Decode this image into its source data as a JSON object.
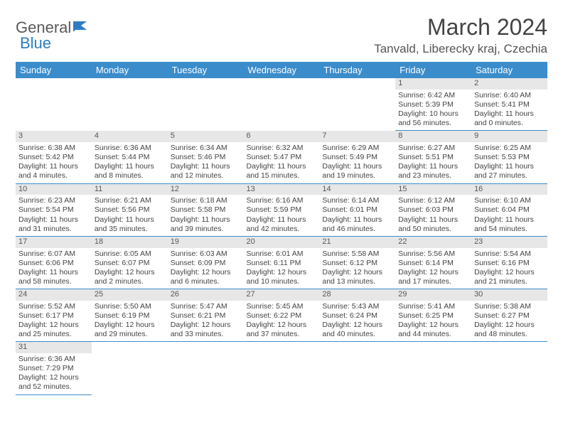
{
  "logo": {
    "text1": "General",
    "text2": "Blue"
  },
  "title": "March 2024",
  "location": "Tanvald, Liberecky kraj, Czechia",
  "colors": {
    "header_bg": "#3b8ccb",
    "header_text": "#ffffff",
    "daynum_bg": "#e7e7e7",
    "cell_border": "#3b8ccb",
    "text": "#444444",
    "logo_gray": "#5a5a5a",
    "logo_blue": "#2d7dc4"
  },
  "weekdays": [
    "Sunday",
    "Monday",
    "Tuesday",
    "Wednesday",
    "Thursday",
    "Friday",
    "Saturday"
  ],
  "weeks": [
    [
      null,
      null,
      null,
      null,
      null,
      {
        "n": "1",
        "sr": "Sunrise: 6:42 AM",
        "ss": "Sunset: 5:39 PM",
        "dl": "Daylight: 10 hours and 56 minutes."
      },
      {
        "n": "2",
        "sr": "Sunrise: 6:40 AM",
        "ss": "Sunset: 5:41 PM",
        "dl": "Daylight: 11 hours and 0 minutes."
      }
    ],
    [
      {
        "n": "3",
        "sr": "Sunrise: 6:38 AM",
        "ss": "Sunset: 5:42 PM",
        "dl": "Daylight: 11 hours and 4 minutes."
      },
      {
        "n": "4",
        "sr": "Sunrise: 6:36 AM",
        "ss": "Sunset: 5:44 PM",
        "dl": "Daylight: 11 hours and 8 minutes."
      },
      {
        "n": "5",
        "sr": "Sunrise: 6:34 AM",
        "ss": "Sunset: 5:46 PM",
        "dl": "Daylight: 11 hours and 12 minutes."
      },
      {
        "n": "6",
        "sr": "Sunrise: 6:32 AM",
        "ss": "Sunset: 5:47 PM",
        "dl": "Daylight: 11 hours and 15 minutes."
      },
      {
        "n": "7",
        "sr": "Sunrise: 6:29 AM",
        "ss": "Sunset: 5:49 PM",
        "dl": "Daylight: 11 hours and 19 minutes."
      },
      {
        "n": "8",
        "sr": "Sunrise: 6:27 AM",
        "ss": "Sunset: 5:51 PM",
        "dl": "Daylight: 11 hours and 23 minutes."
      },
      {
        "n": "9",
        "sr": "Sunrise: 6:25 AM",
        "ss": "Sunset: 5:53 PM",
        "dl": "Daylight: 11 hours and 27 minutes."
      }
    ],
    [
      {
        "n": "10",
        "sr": "Sunrise: 6:23 AM",
        "ss": "Sunset: 5:54 PM",
        "dl": "Daylight: 11 hours and 31 minutes."
      },
      {
        "n": "11",
        "sr": "Sunrise: 6:21 AM",
        "ss": "Sunset: 5:56 PM",
        "dl": "Daylight: 11 hours and 35 minutes."
      },
      {
        "n": "12",
        "sr": "Sunrise: 6:18 AM",
        "ss": "Sunset: 5:58 PM",
        "dl": "Daylight: 11 hours and 39 minutes."
      },
      {
        "n": "13",
        "sr": "Sunrise: 6:16 AM",
        "ss": "Sunset: 5:59 PM",
        "dl": "Daylight: 11 hours and 42 minutes."
      },
      {
        "n": "14",
        "sr": "Sunrise: 6:14 AM",
        "ss": "Sunset: 6:01 PM",
        "dl": "Daylight: 11 hours and 46 minutes."
      },
      {
        "n": "15",
        "sr": "Sunrise: 6:12 AM",
        "ss": "Sunset: 6:03 PM",
        "dl": "Daylight: 11 hours and 50 minutes."
      },
      {
        "n": "16",
        "sr": "Sunrise: 6:10 AM",
        "ss": "Sunset: 6:04 PM",
        "dl": "Daylight: 11 hours and 54 minutes."
      }
    ],
    [
      {
        "n": "17",
        "sr": "Sunrise: 6:07 AM",
        "ss": "Sunset: 6:06 PM",
        "dl": "Daylight: 11 hours and 58 minutes."
      },
      {
        "n": "18",
        "sr": "Sunrise: 6:05 AM",
        "ss": "Sunset: 6:07 PM",
        "dl": "Daylight: 12 hours and 2 minutes."
      },
      {
        "n": "19",
        "sr": "Sunrise: 6:03 AM",
        "ss": "Sunset: 6:09 PM",
        "dl": "Daylight: 12 hours and 6 minutes."
      },
      {
        "n": "20",
        "sr": "Sunrise: 6:01 AM",
        "ss": "Sunset: 6:11 PM",
        "dl": "Daylight: 12 hours and 10 minutes."
      },
      {
        "n": "21",
        "sr": "Sunrise: 5:58 AM",
        "ss": "Sunset: 6:12 PM",
        "dl": "Daylight: 12 hours and 13 minutes."
      },
      {
        "n": "22",
        "sr": "Sunrise: 5:56 AM",
        "ss": "Sunset: 6:14 PM",
        "dl": "Daylight: 12 hours and 17 minutes."
      },
      {
        "n": "23",
        "sr": "Sunrise: 5:54 AM",
        "ss": "Sunset: 6:16 PM",
        "dl": "Daylight: 12 hours and 21 minutes."
      }
    ],
    [
      {
        "n": "24",
        "sr": "Sunrise: 5:52 AM",
        "ss": "Sunset: 6:17 PM",
        "dl": "Daylight: 12 hours and 25 minutes."
      },
      {
        "n": "25",
        "sr": "Sunrise: 5:50 AM",
        "ss": "Sunset: 6:19 PM",
        "dl": "Daylight: 12 hours and 29 minutes."
      },
      {
        "n": "26",
        "sr": "Sunrise: 5:47 AM",
        "ss": "Sunset: 6:21 PM",
        "dl": "Daylight: 12 hours and 33 minutes."
      },
      {
        "n": "27",
        "sr": "Sunrise: 5:45 AM",
        "ss": "Sunset: 6:22 PM",
        "dl": "Daylight: 12 hours and 37 minutes."
      },
      {
        "n": "28",
        "sr": "Sunrise: 5:43 AM",
        "ss": "Sunset: 6:24 PM",
        "dl": "Daylight: 12 hours and 40 minutes."
      },
      {
        "n": "29",
        "sr": "Sunrise: 5:41 AM",
        "ss": "Sunset: 6:25 PM",
        "dl": "Daylight: 12 hours and 44 minutes."
      },
      {
        "n": "30",
        "sr": "Sunrise: 5:38 AM",
        "ss": "Sunset: 6:27 PM",
        "dl": "Daylight: 12 hours and 48 minutes."
      }
    ],
    [
      {
        "n": "31",
        "sr": "Sunrise: 6:36 AM",
        "ss": "Sunset: 7:29 PM",
        "dl": "Daylight: 12 hours and 52 minutes."
      },
      null,
      null,
      null,
      null,
      null,
      null
    ]
  ]
}
